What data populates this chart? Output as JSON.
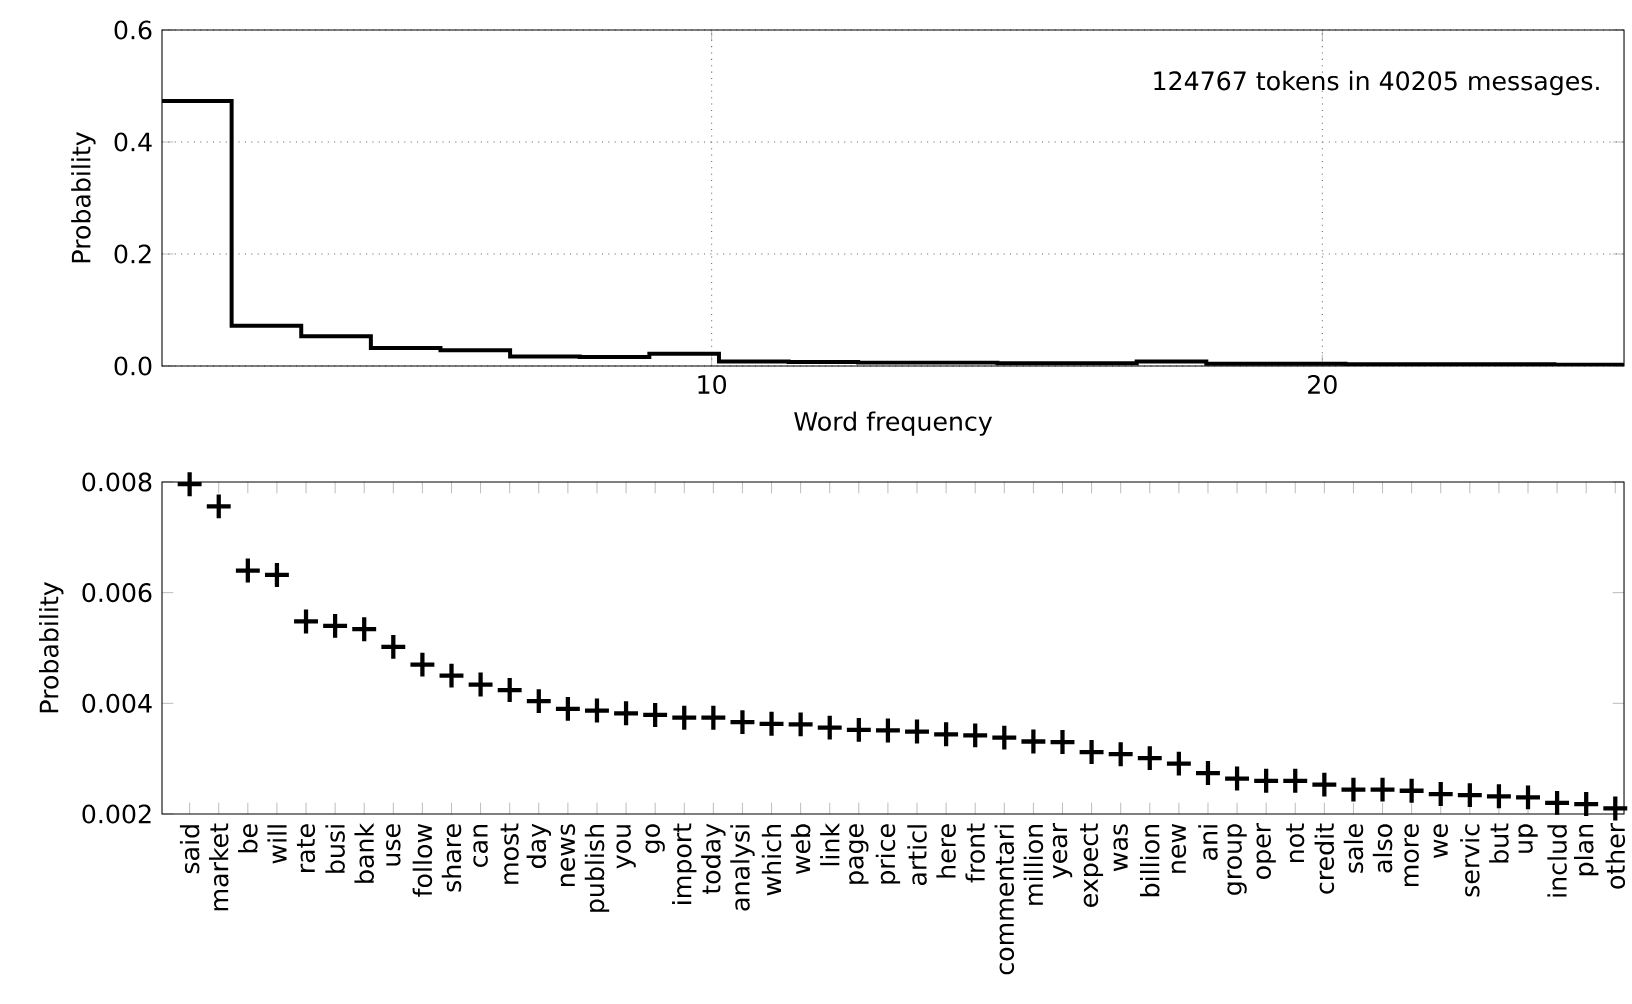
{
  "chart_data": [
    {
      "type": "histogram",
      "xlabel": "Word frequency",
      "ylabel": "Probability",
      "color": "#000000",
      "grid": true,
      "bins": [
        1,
        2.14,
        3.28,
        4.42,
        5.56,
        6.7,
        7.84,
        8.98,
        10.12,
        11.26,
        12.4,
        13.54,
        14.68,
        15.82,
        16.96,
        18.1,
        19.24,
        20.38,
        21.52,
        22.66,
        23.8,
        24.94
      ],
      "values": [
        0.473,
        0.072,
        0.053,
        0.032,
        0.028,
        0.017,
        0.016,
        0.022,
        0.008,
        0.007,
        0.006,
        0.006,
        0.005,
        0.005,
        0.008,
        0.004,
        0.004,
        0.003,
        0.003,
        0.003,
        0.002
      ],
      "xlim": [
        1,
        24.94
      ],
      "ylim": [
        0,
        0.6
      ],
      "xticks": [
        10,
        20
      ],
      "yticks": [
        {
          "value": 0,
          "label": "0.0"
        },
        0.2,
        0.4,
        0.6
      ],
      "annotations": [
        "124767 tokens in 40205 messages."
      ]
    },
    {
      "type": "scatter",
      "ylabel": "Probability",
      "color": "#000000",
      "marker": "cross",
      "categories": [
        "said",
        "market",
        "be",
        "will",
        "rate",
        "busi",
        "bank",
        "use",
        "follow",
        "share",
        "can",
        "most",
        "day",
        "news",
        "publish",
        "you",
        "go",
        "import",
        "today",
        "analysi",
        "which",
        "web",
        "link",
        "page",
        "price",
        "articl",
        "here",
        "front",
        "commentari",
        "million",
        "year",
        "expect",
        "was",
        "billion",
        "new",
        "ani",
        "group",
        "oper",
        "not",
        "credit",
        "sale",
        "also",
        "more",
        "we",
        "servic",
        "but",
        "up",
        "includ",
        "plan",
        "other"
      ],
      "values": [
        0.00796,
        0.00756,
        0.0064,
        0.00632,
        0.00548,
        0.0054,
        0.00534,
        0.00502,
        0.0047,
        0.0045,
        0.00434,
        0.00424,
        0.00404,
        0.0039,
        0.00387,
        0.00382,
        0.00379,
        0.00374,
        0.00374,
        0.00366,
        0.00363,
        0.00362,
        0.00356,
        0.00352,
        0.00351,
        0.00349,
        0.00344,
        0.00342,
        0.00338,
        0.00331,
        0.0033,
        0.00312,
        0.00308,
        0.00301,
        0.00291,
        0.00274,
        0.00264,
        0.0026,
        0.0026,
        0.00253,
        0.00244,
        0.00244,
        0.00242,
        0.00236,
        0.00234,
        0.00232,
        0.0023,
        0.0022,
        0.00218,
        0.0021
      ],
      "ylim": [
        0.002,
        0.008
      ],
      "yticks": [
        0.002,
        0.004,
        0.006,
        0.008
      ]
    }
  ]
}
